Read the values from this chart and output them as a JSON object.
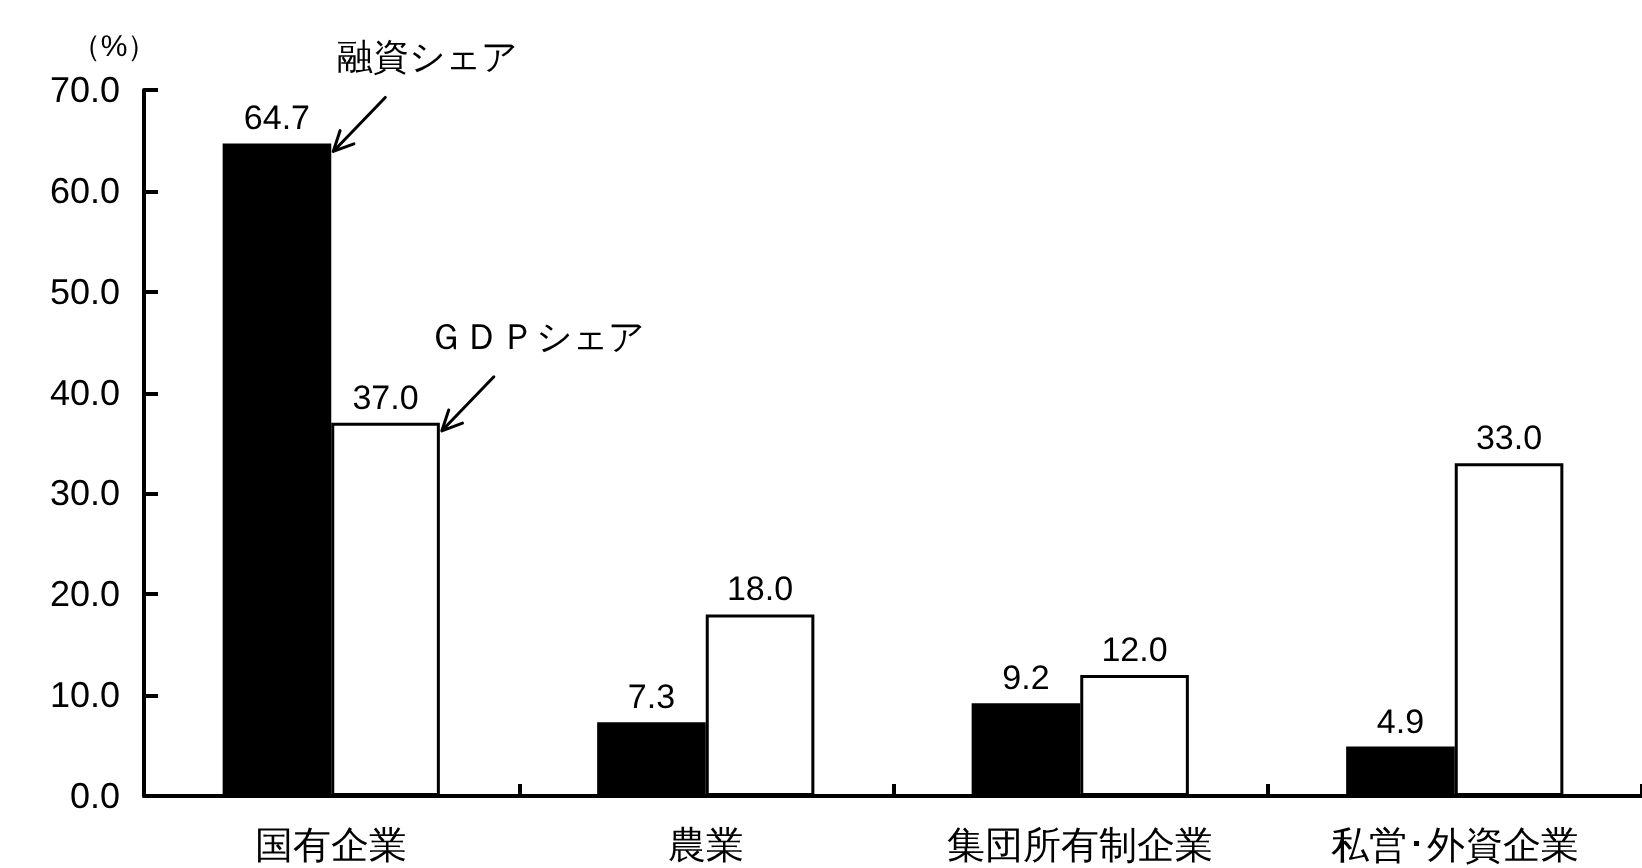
{
  "chart_data": {
    "type": "bar",
    "ylabel": "（%）",
    "categories": [
      "国有企業",
      "農業",
      "集団所有制企業",
      "私営･外資企業"
    ],
    "series": [
      {
        "name": "融資シェア",
        "color": "#000000",
        "values": [
          64.7,
          7.3,
          9.2,
          4.9
        ],
        "value_labels": [
          "64.7",
          "7.3",
          "9.2",
          "4.9"
        ]
      },
      {
        "name": "ＧＤＰシェア",
        "color": "#ffffff",
        "values": [
          37.0,
          18.0,
          12.0,
          33.0
        ],
        "value_labels": [
          "37.0",
          "18.0",
          "12.0",
          "33.0"
        ]
      }
    ],
    "ylim": [
      0,
      70
    ],
    "yticks": [
      {
        "value": 0,
        "label": "0.0"
      },
      {
        "value": 10,
        "label": "10.0"
      },
      {
        "value": 20,
        "label": "20.0"
      },
      {
        "value": 30,
        "label": "30.0"
      },
      {
        "value": 40,
        "label": "40.0"
      },
      {
        "value": 50,
        "label": "50.0"
      },
      {
        "value": 60,
        "label": "60.0"
      },
      {
        "value": 70,
        "label": "70.0"
      }
    ],
    "grid": false,
    "legend": false
  }
}
